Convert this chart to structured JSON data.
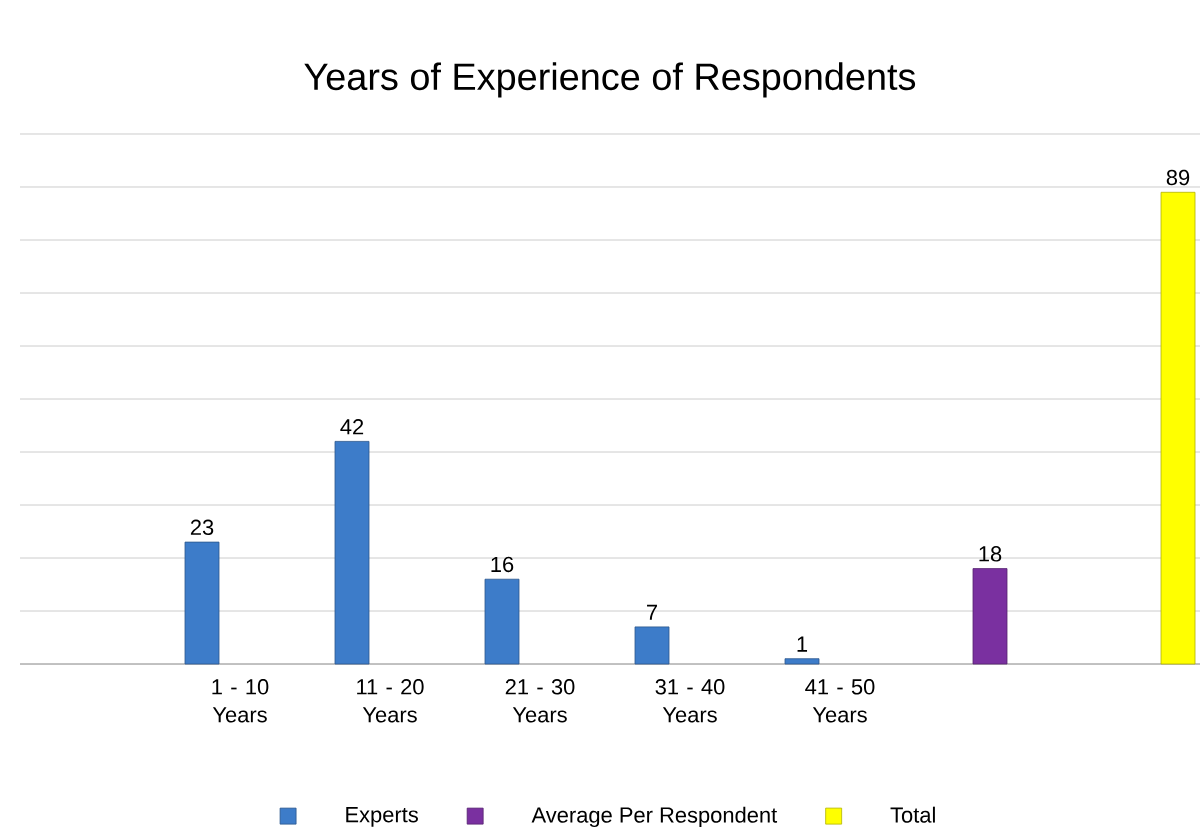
{
  "chart_data": {
    "type": "bar",
    "title": "Years of Experience of Respondents",
    "categories": [
      "1 - 10 Years",
      "11 - 20 Years",
      "21 - 30 Years",
      "31 - 40 Years",
      "41 - 50 Years",
      null,
      null
    ],
    "series": [
      {
        "name": "Experts",
        "color": "#3d7cc9",
        "values": [
          23,
          42,
          16,
          7,
          1,
          null,
          null
        ]
      },
      {
        "name": "Average Per Respondent",
        "color": "#7a30a0",
        "values": [
          null,
          null,
          null,
          null,
          null,
          18,
          null
        ]
      },
      {
        "name": "Total",
        "color": "#ffff00",
        "values": [
          null,
          null,
          null,
          null,
          null,
          null,
          89
        ]
      }
    ],
    "ylim": [
      0,
      100
    ],
    "yticks": [
      {
        "value": 0,
        "label": null
      },
      {
        "value": 10,
        "label": null
      },
      {
        "value": 20,
        "label": null
      },
      {
        "value": 30,
        "label": null
      },
      {
        "value": 40,
        "label": null
      },
      {
        "value": 50,
        "label": null
      },
      {
        "value": 60,
        "label": null
      },
      {
        "value": 70,
        "label": null
      },
      {
        "value": 80,
        "label": null
      },
      {
        "value": 90,
        "label": null
      },
      {
        "value": 100,
        "label": null
      }
    ],
    "grid": "y",
    "legend": "bottom",
    "tick_labels": "x",
    "data_labels": true
  }
}
